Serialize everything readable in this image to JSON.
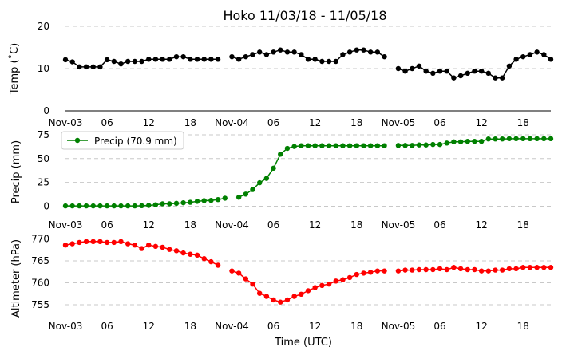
{
  "title": "Hoko 11/03/18 - 11/05/18",
  "xlabel": "Time (UTC)",
  "x_ticks": [
    {
      "h": 0,
      "label": "Nov-03"
    },
    {
      "h": 6,
      "label": "06"
    },
    {
      "h": 12,
      "label": "12"
    },
    {
      "h": 18,
      "label": "18"
    },
    {
      "h": 24,
      "label": "Nov-04"
    },
    {
      "h": 30,
      "label": "06"
    },
    {
      "h": 36,
      "label": "12"
    },
    {
      "h": 42,
      "label": "18"
    },
    {
      "h": 48,
      "label": "Nov-05"
    },
    {
      "h": 54,
      "label": "06"
    },
    {
      "h": 60,
      "label": "12"
    },
    {
      "h": 66,
      "label": "18"
    }
  ],
  "chart_data": [
    {
      "type": "line",
      "ylabel": "Temp (˚C)",
      "color": "#000000",
      "ylim": [
        0,
        20
      ],
      "yticks": [
        0,
        10,
        20
      ],
      "grid": true,
      "legend": null,
      "x_unit": "hours since Nov-03 00:00 UTC",
      "x": [
        0,
        1,
        2,
        3,
        4,
        5,
        6,
        7,
        8,
        9,
        10,
        11,
        12,
        13,
        14,
        15,
        16,
        17,
        18,
        19,
        20,
        21,
        22,
        23,
        24,
        25,
        26,
        27,
        28,
        29,
        30,
        31,
        32,
        33,
        34,
        35,
        36,
        37,
        38,
        39,
        40,
        41,
        42,
        43,
        44,
        45,
        46,
        47,
        48,
        49,
        50,
        51,
        52,
        53,
        54,
        55,
        56,
        57,
        58,
        59,
        60,
        61,
        62,
        63,
        64,
        65,
        66,
        67,
        68,
        69,
        70
      ],
      "values": [
        12.1,
        11.6,
        10.4,
        10.4,
        10.4,
        10.4,
        12.1,
        11.7,
        11.1,
        11.7,
        11.7,
        11.7,
        12.2,
        12.2,
        12.2,
        12.2,
        12.8,
        12.8,
        12.2,
        12.2,
        12.2,
        12.2,
        12.2,
        null,
        12.8,
        12.2,
        12.8,
        13.3,
        13.9,
        13.3,
        13.9,
        14.4,
        13.9,
        13.9,
        13.3,
        12.2,
        12.2,
        11.7,
        11.7,
        11.7,
        13.3,
        13.9,
        14.4,
        14.4,
        13.9,
        13.9,
        12.8,
        null,
        10.0,
        9.4,
        10.0,
        10.6,
        9.4,
        8.9,
        9.4,
        9.4,
        7.8,
        8.3,
        8.9,
        9.4,
        9.4,
        8.9,
        7.8,
        7.8,
        10.6,
        12.2,
        12.8,
        13.3,
        13.9,
        13.3,
        12.2
      ]
    },
    {
      "type": "line",
      "ylabel": "Precip (mm)",
      "color": "#008000",
      "ylim": [
        -8,
        80
      ],
      "yticks": [
        0,
        25,
        50,
        75
      ],
      "grid": true,
      "legend": {
        "label": "Precip (70.9 mm)",
        "position": "upper-left"
      },
      "x_unit": "hours since Nov-03 00:00 UTC",
      "x": [
        0,
        1,
        2,
        3,
        4,
        5,
        6,
        7,
        8,
        9,
        10,
        11,
        12,
        13,
        14,
        15,
        16,
        17,
        18,
        19,
        20,
        21,
        22,
        23,
        24,
        25,
        26,
        27,
        28,
        29,
        30,
        31,
        32,
        33,
        34,
        35,
        36,
        37,
        38,
        39,
        40,
        41,
        42,
        43,
        44,
        45,
        46,
        47,
        48,
        49,
        50,
        51,
        52,
        53,
        54,
        55,
        56,
        57,
        58,
        59,
        60,
        61,
        62,
        63,
        64,
        65,
        66,
        67,
        68,
        69,
        70
      ],
      "values": [
        0.3,
        0.3,
        0.3,
        0.3,
        0.3,
        0.3,
        0.3,
        0.3,
        0.3,
        0.3,
        0.3,
        0.5,
        0.8,
        1.5,
        2.5,
        2.5,
        3.0,
        3.6,
        4.1,
        5.1,
        5.8,
        6.1,
        6.9,
        8.4,
        null,
        9.4,
        12.7,
        17.5,
        24.6,
        29.2,
        39.9,
        54.6,
        60.7,
        62.7,
        63.5,
        63.5,
        63.5,
        63.5,
        63.5,
        63.5,
        63.5,
        63.5,
        63.5,
        63.5,
        63.5,
        63.5,
        63.5,
        null,
        63.8,
        63.8,
        63.8,
        64.3,
        64.3,
        64.8,
        64.8,
        66.3,
        67.6,
        67.6,
        68.1,
        68.1,
        68.1,
        70.6,
        70.6,
        70.6,
        70.9,
        70.9,
        70.9,
        70.9,
        70.9,
        70.9,
        70.9
      ]
    },
    {
      "type": "line",
      "ylabel": "Altimeter (hPa)",
      "color": "#ff0000",
      "ylim": [
        751,
        771
      ],
      "yticks": [
        755,
        760,
        765,
        770
      ],
      "grid": true,
      "legend": null,
      "x_unit": "hours since Nov-03 00:00 UTC",
      "x": [
        0,
        1,
        2,
        3,
        4,
        5,
        6,
        7,
        8,
        9,
        10,
        11,
        12,
        13,
        14,
        15,
        16,
        17,
        18,
        19,
        20,
        21,
        22,
        23,
        24,
        25,
        26,
        27,
        28,
        29,
        30,
        31,
        32,
        33,
        34,
        35,
        36,
        37,
        38,
        39,
        40,
        41,
        42,
        43,
        44,
        45,
        46,
        47,
        48,
        49,
        50,
        51,
        52,
        53,
        54,
        55,
        56,
        57,
        58,
        59,
        60,
        61,
        62,
        63,
        64,
        65,
        66,
        67,
        68,
        69,
        70
      ],
      "values": [
        768.6,
        768.9,
        769.2,
        769.4,
        769.4,
        769.4,
        769.2,
        769.2,
        769.4,
        768.9,
        768.6,
        767.8,
        768.6,
        768.3,
        768.1,
        767.6,
        767.3,
        766.8,
        766.5,
        766.3,
        765.5,
        764.8,
        764.0,
        null,
        762.7,
        762.2,
        760.9,
        759.7,
        757.6,
        756.9,
        756.1,
        755.6,
        756.1,
        756.9,
        757.4,
        758.2,
        758.9,
        759.4,
        759.7,
        760.4,
        760.7,
        761.2,
        761.9,
        762.2,
        762.4,
        762.7,
        762.7,
        null,
        762.7,
        762.9,
        762.9,
        763.0,
        763.0,
        763.0,
        763.2,
        763.0,
        763.5,
        763.2,
        763.0,
        763.0,
        762.7,
        762.7,
        762.9,
        762.9,
        763.2,
        763.2,
        763.5,
        763.5,
        763.5,
        763.5,
        763.5
      ]
    }
  ]
}
